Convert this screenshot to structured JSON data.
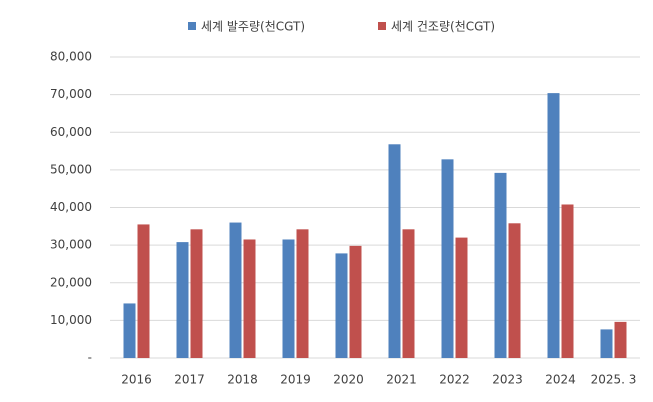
{
  "chart_data": {
    "type": "bar",
    "categories": [
      "2016",
      "2017",
      "2018",
      "2019",
      "2020",
      "2021",
      "2022",
      "2023",
      "2024",
      "2025. 3"
    ],
    "series": [
      {
        "name": "세계 발주량(천CGT)",
        "color": "#4f81bd",
        "values": [
          14500,
          30800,
          36000,
          31500,
          27800,
          56800,
          52800,
          49200,
          70400,
          7600
        ]
      },
      {
        "name": "세계 건조량(천CGT)",
        "color": "#c0504d",
        "values": [
          35500,
          34200,
          31500,
          34200,
          29800,
          34200,
          32000,
          35800,
          40800,
          9600
        ]
      }
    ],
    "ylim": [
      0,
      80000
    ],
    "yticks": [
      {
        "value": 0,
        "label": "-"
      },
      {
        "value": 10000,
        "label": "10,000"
      },
      {
        "value": 20000,
        "label": "20,000"
      },
      {
        "value": 30000,
        "label": "30,000"
      },
      {
        "value": 40000,
        "label": "40,000"
      },
      {
        "value": 50000,
        "label": "50,000"
      },
      {
        "value": 60000,
        "label": "60,000"
      },
      {
        "value": 70000,
        "label": "70,000"
      },
      {
        "value": 80000,
        "label": "80,000"
      }
    ],
    "grid": true,
    "legend": "top"
  }
}
